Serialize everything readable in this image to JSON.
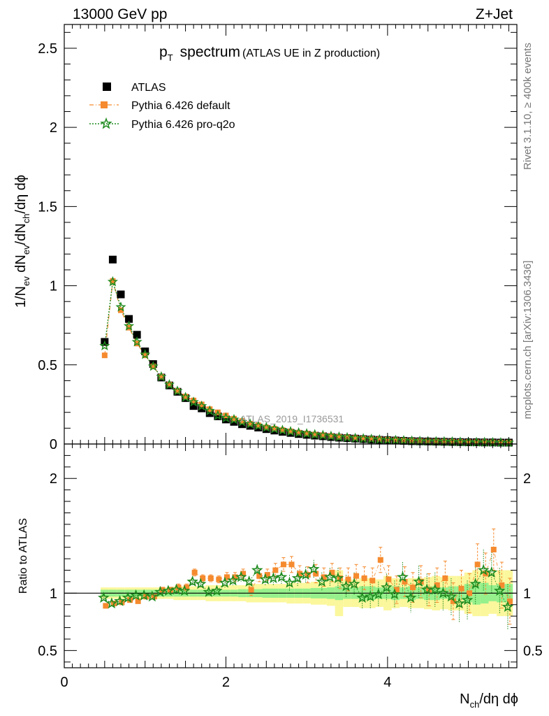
{
  "header": {
    "left": "13000 GeV pp",
    "right": "Z+Jet"
  },
  "side_labels": {
    "rivet": "Rivet 3.1.10, ≥ 400k events",
    "mcplots": "mcplots.cern.ch [arXiv:1306.3436]"
  },
  "watermark": "ATLAS_2019_I1736531",
  "chart_data": [
    {
      "type": "scatter",
      "panel": "main",
      "title_main": "spectrum",
      "title_p": "p",
      "title_sub": "T",
      "title_extra": "(ATLAS UE in Z production)",
      "ylabel_parts": [
        "1/N",
        "ev",
        " dN",
        "ev",
        "/dN",
        "ch",
        "/dη dϕ"
      ],
      "xlabel_parts": [
        "N",
        "ch",
        "/dη dϕ"
      ],
      "xlim": [
        0,
        5.6
      ],
      "ylim": [
        0,
        2.65
      ],
      "yticks": [
        "0",
        "0.5",
        "1",
        "1.5",
        "2",
        "2.5"
      ],
      "legend_position": "top-left",
      "x": [
        0.5,
        0.6,
        0.7,
        0.8,
        0.9,
        1.0,
        1.1,
        1.2,
        1.3,
        1.4,
        1.5,
        1.6,
        1.7,
        1.8,
        1.9,
        2.0,
        2.1,
        2.2,
        2.3,
        2.4,
        2.5,
        2.6,
        2.7,
        2.8,
        2.9,
        3.0,
        3.1,
        3.2,
        3.3,
        3.4,
        3.5,
        3.6,
        3.7,
        3.8,
        3.9,
        4.0,
        4.1,
        4.2,
        4.3,
        4.4,
        4.5,
        4.6,
        4.7,
        4.8,
        4.9,
        5.0,
        5.1,
        5.2,
        5.3,
        5.4,
        5.5
      ],
      "series": [
        {
          "name": "ATLAS",
          "color": "#000000",
          "marker": "square",
          "values": [
            0.645,
            1.165,
            0.945,
            0.79,
            0.69,
            0.585,
            0.505,
            0.42,
            0.37,
            0.33,
            0.29,
            0.24,
            0.225,
            0.195,
            0.175,
            0.155,
            0.14,
            0.125,
            0.115,
            0.104,
            0.094,
            0.085,
            0.077,
            0.07,
            0.063,
            0.058,
            0.053,
            0.049,
            0.044,
            0.04,
            0.037,
            0.034,
            0.031,
            0.028,
            0.026,
            0.024,
            0.022,
            0.02,
            0.018,
            0.017,
            0.016,
            0.015,
            0.014,
            0.013,
            0.012,
            0.011,
            0.011,
            0.01,
            0.01,
            0.009,
            0.009
          ]
        },
        {
          "name": "Pythia 6.426 default",
          "color": "#f58a2e",
          "marker": "square",
          "values": [
            0.56,
            1.03,
            0.845,
            0.735,
            0.635,
            0.56,
            0.49,
            0.425,
            0.375,
            0.335,
            0.3,
            0.275,
            0.25,
            0.22,
            0.2,
            0.18,
            0.16,
            0.145,
            0.128,
            0.118,
            0.105,
            0.097,
            0.088,
            0.08,
            0.072,
            0.066,
            0.06,
            0.055,
            0.05,
            0.045,
            0.041,
            0.037,
            0.034,
            0.031,
            0.029,
            0.027,
            0.024,
            0.022,
            0.02,
            0.018,
            0.017,
            0.016,
            0.015,
            0.014,
            0.013,
            0.012,
            0.011,
            0.011,
            0.01,
            0.009,
            0.009
          ]
        },
        {
          "name": "Pythia 6.426 pro-q2o",
          "color": "#1e8b1e",
          "marker": "star",
          "values": [
            0.62,
            1.025,
            0.865,
            0.745,
            0.645,
            0.565,
            0.49,
            0.425,
            0.375,
            0.335,
            0.295,
            0.265,
            0.24,
            0.21,
            0.18,
            0.165,
            0.155,
            0.14,
            0.127,
            0.115,
            0.105,
            0.096,
            0.087,
            0.079,
            0.072,
            0.066,
            0.06,
            0.055,
            0.05,
            0.045,
            0.041,
            0.037,
            0.034,
            0.031,
            0.028,
            0.026,
            0.024,
            0.022,
            0.02,
            0.018,
            0.017,
            0.016,
            0.015,
            0.014,
            0.013,
            0.012,
            0.011,
            0.011,
            0.01,
            0.009,
            0.009
          ]
        }
      ]
    },
    {
      "type": "scatter",
      "panel": "ratio",
      "ylabel": "Ratio to ATLAS",
      "xlim": [
        0,
        5.6
      ],
      "ylim": [
        0.35,
        2.3
      ],
      "yticks": [
        "0.5",
        "1",
        "2"
      ],
      "xticks": [
        "0",
        "2",
        "4"
      ],
      "reference_line": 1,
      "x": [
        0.5,
        0.6,
        0.7,
        0.8,
        0.9,
        1.0,
        1.1,
        1.2,
        1.3,
        1.4,
        1.5,
        1.6,
        1.7,
        1.8,
        1.9,
        2.0,
        2.1,
        2.2,
        2.3,
        2.4,
        2.5,
        2.6,
        2.7,
        2.8,
        2.9,
        3.0,
        3.1,
        3.2,
        3.3,
        3.4,
        3.5,
        3.6,
        3.7,
        3.8,
        3.9,
        4.0,
        4.1,
        4.2,
        4.3,
        4.4,
        4.5,
        4.6,
        4.7,
        4.8,
        4.9,
        5.0,
        5.1,
        5.2,
        5.3,
        5.4,
        5.5
      ],
      "band_stat": [
        0.03,
        0.03,
        0.03,
        0.03,
        0.03,
        0.03,
        0.03,
        0.03,
        0.03,
        0.03,
        0.03,
        0.03,
        0.03,
        0.03,
        0.03,
        0.03,
        0.03,
        0.035,
        0.035,
        0.035,
        0.04,
        0.04,
        0.04,
        0.04,
        0.04,
        0.04,
        0.045,
        0.045,
        0.05,
        0.06,
        0.05,
        0.05,
        0.06,
        0.06,
        0.05,
        0.05,
        0.06,
        0.05,
        0.06,
        0.05,
        0.06,
        0.06,
        0.05,
        0.06,
        0.06,
        0.08,
        0.1,
        0.09,
        0.07,
        0.08,
        0.08
      ],
      "band_total": [
        0.05,
        0.05,
        0.05,
        0.05,
        0.05,
        0.05,
        0.05,
        0.05,
        0.05,
        0.06,
        0.06,
        0.06,
        0.06,
        0.07,
        0.07,
        0.07,
        0.07,
        0.07,
        0.08,
        0.08,
        0.08,
        0.08,
        0.08,
        0.09,
        0.09,
        0.09,
        0.1,
        0.1,
        0.11,
        0.2,
        0.12,
        0.12,
        0.13,
        0.13,
        0.12,
        0.15,
        0.13,
        0.12,
        0.13,
        0.13,
        0.14,
        0.15,
        0.14,
        0.15,
        0.15,
        0.18,
        0.2,
        0.2,
        0.18,
        0.2,
        0.2
      ],
      "series": [
        {
          "name": "Pythia 6.426 default",
          "color": "#f58a2e",
          "marker": "square",
          "values": [
            0.89,
            0.91,
            0.92,
            0.94,
            0.93,
            0.97,
            0.97,
            1.03,
            1.03,
            1.05,
            1.05,
            1.18,
            1.13,
            1.13,
            1.12,
            1.14,
            1.14,
            1.17,
            1.03,
            1.15,
            1.16,
            1.2,
            1.25,
            1.25,
            1.17,
            1.16,
            1.17,
            1.14,
            1.18,
            1.13,
            1.12,
            1.15,
            1.13,
            1.11,
            1.29,
            1.12,
            1.03,
            1.1,
            1.05,
            1.1,
            1.03,
            1.07,
            1.13,
            0.93,
            1.04,
            1.0,
            1.25,
            1.17,
            1.38,
            1.07,
            0.93
          ],
          "err": [
            0.02,
            0.02,
            0.02,
            0.02,
            0.02,
            0.02,
            0.02,
            0.02,
            0.02,
            0.03,
            0.03,
            0.03,
            0.03,
            0.03,
            0.03,
            0.04,
            0.04,
            0.04,
            0.05,
            0.05,
            0.05,
            0.06,
            0.06,
            0.07,
            0.07,
            0.07,
            0.08,
            0.08,
            0.08,
            0.09,
            0.1,
            0.1,
            0.1,
            0.11,
            0.11,
            0.12,
            0.12,
            0.13,
            0.13,
            0.14,
            0.14,
            0.15,
            0.15,
            0.16,
            0.16,
            0.17,
            0.18,
            0.18,
            0.18,
            0.2,
            0.2
          ]
        },
        {
          "name": "Pythia 6.426 pro-q2o",
          "color": "#1e8b1e",
          "marker": "star",
          "values": [
            0.96,
            0.91,
            0.93,
            0.96,
            0.98,
            0.98,
            0.97,
            1.01,
            1.02,
            1.03,
            1.02,
            1.1,
            1.08,
            1.01,
            1.02,
            1.09,
            1.11,
            1.14,
            1.1,
            1.2,
            1.12,
            1.13,
            1.14,
            1.09,
            1.13,
            1.16,
            1.21,
            1.1,
            1.14,
            1.13,
            1.06,
            1.08,
            0.96,
            0.97,
            0.99,
            1.05,
            0.99,
            1.14,
            0.96,
            1.1,
            1.03,
            1.03,
            1.0,
            0.97,
            0.91,
            0.94,
            1.08,
            1.2,
            1.18,
            1.02,
            0.88
          ],
          "err": [
            0.02,
            0.02,
            0.02,
            0.02,
            0.02,
            0.02,
            0.02,
            0.02,
            0.02,
            0.03,
            0.03,
            0.03,
            0.03,
            0.03,
            0.03,
            0.04,
            0.04,
            0.04,
            0.05,
            0.05,
            0.05,
            0.06,
            0.06,
            0.07,
            0.07,
            0.07,
            0.08,
            0.08,
            0.08,
            0.09,
            0.1,
            0.1,
            0.1,
            0.11,
            0.11,
            0.12,
            0.12,
            0.13,
            0.13,
            0.14,
            0.14,
            0.15,
            0.15,
            0.16,
            0.16,
            0.17,
            0.18,
            0.18,
            0.18,
            0.2,
            0.2
          ]
        }
      ]
    }
  ]
}
